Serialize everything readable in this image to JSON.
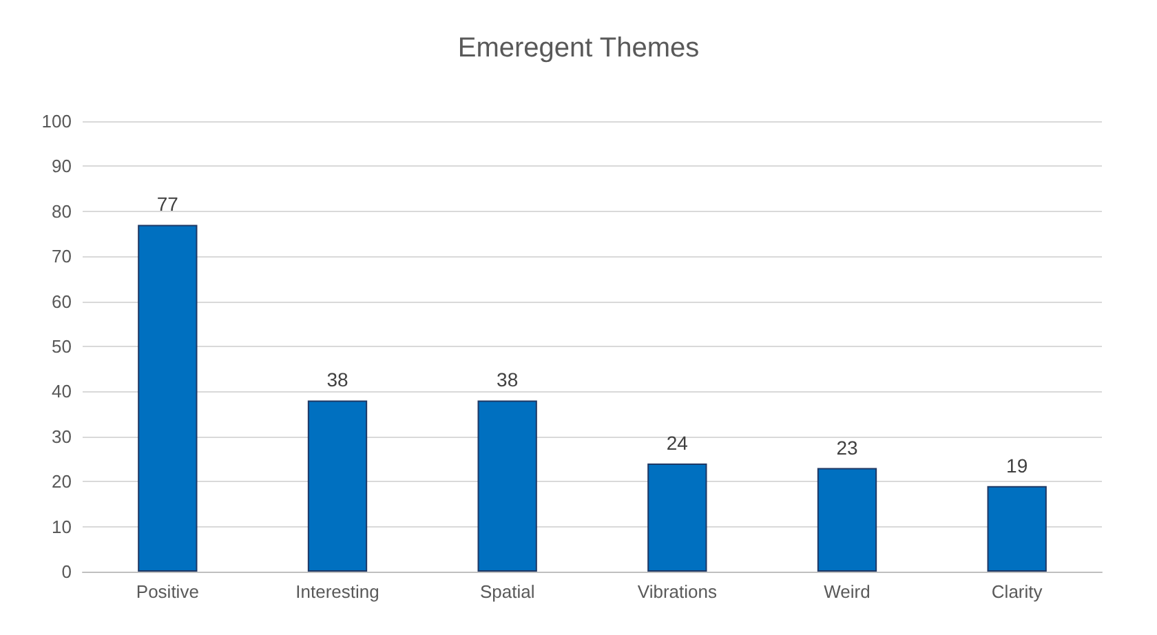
{
  "chart_data": {
    "type": "bar",
    "title": "Emeregent Themes",
    "categories": [
      "Positive",
      "Interesting",
      "Spatial",
      "Vibrations",
      "Weird",
      "Clarity"
    ],
    "values": [
      77,
      38,
      38,
      24,
      23,
      19
    ],
    "color": "#0070c0",
    "ylim": [
      0,
      100
    ],
    "yticks": [
      0,
      10,
      20,
      30,
      40,
      50,
      60,
      70,
      80,
      90,
      100
    ],
    "grid": "y",
    "data_labels": true
  }
}
